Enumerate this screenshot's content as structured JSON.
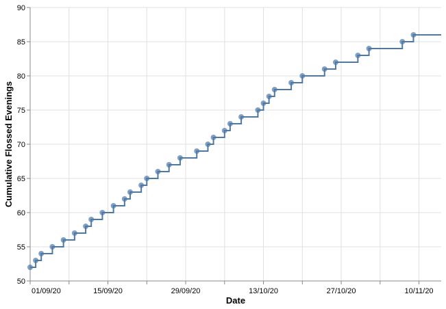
{
  "chart_data": {
    "type": "line",
    "step": "after",
    "color": "#4c78a8",
    "x_title": "Date",
    "y_title": "Cumulative Flossed Evenings",
    "x": [
      "2020-09-01",
      "2020-09-02",
      "2020-09-03",
      "2020-09-05",
      "2020-09-07",
      "2020-09-09",
      "2020-09-11",
      "2020-09-12",
      "2020-09-14",
      "2020-09-16",
      "2020-09-18",
      "2020-09-19",
      "2020-09-21",
      "2020-09-22",
      "2020-09-24",
      "2020-09-26",
      "2020-09-28",
      "2020-10-01",
      "2020-10-03",
      "2020-10-04",
      "2020-10-06",
      "2020-10-07",
      "2020-10-09",
      "2020-10-12",
      "2020-10-13",
      "2020-10-14",
      "2020-10-15",
      "2020-10-18",
      "2020-10-20",
      "2020-10-24",
      "2020-10-26",
      "2020-10-30",
      "2020-11-01",
      "2020-11-07",
      "2020-11-09"
    ],
    "values": [
      52,
      53,
      54,
      55,
      56,
      57,
      58,
      59,
      60,
      61,
      62,
      63,
      64,
      65,
      66,
      67,
      68,
      69,
      70,
      71,
      72,
      73,
      74,
      75,
      76,
      77,
      78,
      79,
      80,
      81,
      82,
      83,
      84,
      85,
      86
    ],
    "xlim": [
      "2020-09-01",
      "2020-11-14"
    ],
    "xticks": [
      {
        "value": "2020-09-01",
        "label": "01/09/20"
      },
      {
        "value": "2020-09-15",
        "label": "15/09/20"
      },
      {
        "value": "2020-09-29",
        "label": "29/09/20"
      },
      {
        "value": "2020-10-13",
        "label": "13/10/20"
      },
      {
        "value": "2020-10-27",
        "label": "27/10/20"
      },
      {
        "value": "2020-11-10",
        "label": "10/11/20"
      }
    ],
    "xminorticks": [
      "2020-09-08",
      "2020-09-22",
      "2020-10-06",
      "2020-10-20",
      "2020-11-03"
    ],
    "ylim": [
      50,
      90
    ],
    "yticks": [
      50,
      55,
      60,
      65,
      70,
      75,
      80,
      85,
      90
    ],
    "grid": true
  }
}
